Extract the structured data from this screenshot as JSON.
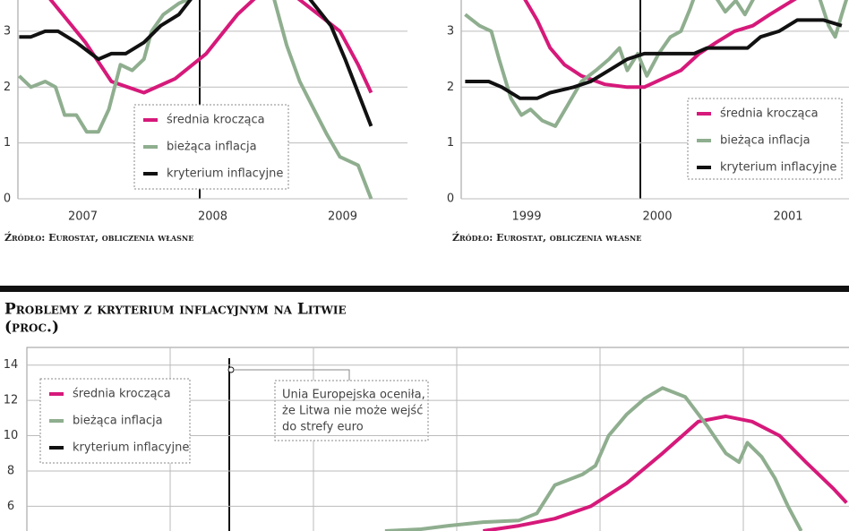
{
  "chart_data": [
    {
      "type": "line",
      "source": "Źródło: Eurostat, obliczenia własne",
      "xlim": [
        2007,
        2010
      ],
      "xticks": [
        {
          "value": 2007.5,
          "label": "2007"
        },
        {
          "value": 2008.5,
          "label": "2008"
        },
        {
          "value": 2009.5,
          "label": "2009"
        }
      ],
      "ylim": [
        0,
        3.56
      ],
      "yticks": [
        0,
        1,
        2,
        3
      ],
      "grid": true,
      "series": [
        {
          "name": "średnia krocząca",
          "color": "#d6197a",
          "x": [
            2007.24,
            2007.38,
            2007.52,
            2007.72,
            2007.97,
            2008.21,
            2008.45,
            2008.69,
            2008.83,
            2009.0,
            2009.15,
            2009.48,
            2009.62,
            2009.72
          ],
          "values": [
            3.6,
            3.2,
            2.8,
            2.1,
            1.9,
            2.15,
            2.6,
            3.3,
            3.6,
            null,
            3.6,
            3.0,
            2.4,
            1.9
          ]
        },
        {
          "name": "bieżąca inflacja",
          "color": "#8fae8f",
          "x": [
            2007.01,
            2007.1,
            2007.21,
            2007.29,
            2007.36,
            2007.45,
            2007.53,
            2007.62,
            2007.7,
            2007.79,
            2007.88,
            2007.97,
            2008.03,
            2008.12,
            2008.24,
            2008.34,
            2008.6,
            2008.97,
            2009.07,
            2009.17,
            2009.28,
            2009.38,
            2009.48,
            2009.62,
            2009.72
          ],
          "values": [
            2.2,
            2.0,
            2.1,
            2.0,
            1.5,
            1.5,
            1.2,
            1.2,
            1.6,
            2.4,
            2.3,
            2.5,
            3.0,
            3.3,
            3.5,
            3.6,
            null,
            3.6,
            2.75,
            2.1,
            1.6,
            1.15,
            0.75,
            0.6,
            0.0
          ]
        },
        {
          "name": "kryterium inflacyjne",
          "color": "#111111",
          "x": [
            2007.01,
            2007.1,
            2007.21,
            2007.31,
            2007.45,
            2007.62,
            2007.72,
            2007.83,
            2007.97,
            2008.1,
            2008.24,
            2008.34,
            2008.6,
            2009.24,
            2009.41,
            2009.52,
            2009.62,
            2009.72
          ],
          "values": [
            2.9,
            2.9,
            3.0,
            3.0,
            2.8,
            2.5,
            2.6,
            2.6,
            2.8,
            3.1,
            3.3,
            3.6,
            null,
            3.6,
            3.1,
            2.5,
            1.9,
            1.3
          ]
        }
      ]
    },
    {
      "type": "line",
      "source": "Źródło: Eurostat, obliczenia własne",
      "xlim": [
        1999,
        2002
      ],
      "xticks": [
        {
          "value": 1999.5,
          "label": "1999"
        },
        {
          "value": 2000.5,
          "label": "2000"
        },
        {
          "value": 2001.5,
          "label": "2001"
        }
      ],
      "ylim": [
        0,
        3.56
      ],
      "yticks": [
        0,
        1,
        2,
        3
      ],
      "grid": true,
      "series": [
        {
          "name": "średnia krocząca",
          "color": "#d6197a",
          "x": [
            1999.48,
            1999.58,
            1999.68,
            1999.79,
            1999.92,
            2000.1,
            2000.27,
            2000.4,
            2000.54,
            2000.68,
            2000.82,
            2000.95,
            2001.09,
            2001.23,
            2001.36,
            2001.5,
            2001.57
          ],
          "values": [
            3.6,
            3.2,
            2.7,
            2.4,
            2.2,
            2.05,
            2.0,
            2.0,
            2.15,
            2.3,
            2.6,
            2.8,
            3.0,
            3.1,
            3.3,
            3.5,
            3.6
          ]
        },
        {
          "name": "bieżąca inflacja",
          "color": "#8fae8f",
          "x": [
            1999.03,
            1999.14,
            1999.23,
            1999.29,
            1999.38,
            1999.46,
            1999.53,
            1999.62,
            1999.72,
            1999.82,
            1999.92,
            2000.03,
            2000.13,
            2000.21,
            2000.27,
            2000.35,
            2000.42,
            2000.51,
            2000.6,
            2000.68,
            2000.75,
            2000.78,
            2000.85,
            2000.95,
            2001.02,
            2001.1,
            2001.17,
            2001.24,
            2001.5,
            2001.74,
            2001.81,
            2001.86,
            2001.91,
            2001.95
          ],
          "values": [
            3.3,
            3.1,
            3.0,
            2.5,
            1.8,
            1.5,
            1.6,
            1.4,
            1.3,
            1.7,
            2.1,
            2.3,
            2.5,
            2.7,
            2.3,
            2.6,
            2.2,
            2.6,
            2.9,
            3.0,
            3.4,
            3.6,
            null,
            3.6,
            3.35,
            3.55,
            3.3,
            3.6,
            null,
            3.6,
            3.1,
            2.9,
            3.3,
            3.6
          ]
        },
        {
          "name": "kryterium inflacyjne",
          "color": "#111111",
          "x": [
            1999.03,
            1999.21,
            1999.31,
            1999.45,
            1999.58,
            1999.68,
            1999.86,
            1999.99,
            2000.13,
            2000.27,
            2000.4,
            2000.61,
            2000.78,
            2000.88,
            2001.19,
            2001.29,
            2001.43,
            2001.57,
            2001.77,
            2001.91
          ],
          "values": [
            2.1,
            2.1,
            2.0,
            1.8,
            1.8,
            1.9,
            2.0,
            2.1,
            2.3,
            2.5,
            2.6,
            2.6,
            2.6,
            2.7,
            2.7,
            2.9,
            3.0,
            3.2,
            3.2,
            3.1
          ]
        }
      ]
    },
    {
      "type": "line",
      "title": "Problemy z kryterium inflacyjnym na Litwie",
      "subtitle": "(proc.)",
      "annotation": [
        "Unia Europejska oceniła,",
        "że Litwa nie może wejść",
        "do strefy euro"
      ],
      "xlim": [
        0.25,
        69
      ],
      "ylim": [
        4.6,
        15
      ],
      "yticks": [
        6,
        8,
        10,
        12,
        14
      ],
      "grid": true,
      "series": [
        {
          "name": "średnia krocząca",
          "color": "#d6197a",
          "x": [
            38.4,
            41.4,
            44.4,
            47.4,
            50.4,
            53.4,
            56.4,
            58.7,
            60.9,
            63.2,
            65.4,
            67.7,
            68.8
          ],
          "values": [
            4.6,
            4.9,
            5.3,
            6.0,
            7.3,
            9.0,
            10.8,
            11.1,
            10.8,
            10.0,
            8.5,
            7.0,
            6.2
          ]
        },
        {
          "name": "bieżąca inflacja",
          "color": "#8fae8f",
          "x": [
            30.2,
            33.2,
            35.5,
            38.4,
            41.4,
            42.9,
            44.4,
            46.7,
            47.8,
            48.9,
            50.4,
            51.9,
            53.4,
            55.3,
            57.2,
            58.7,
            59.8,
            60.5,
            61.7,
            62.8,
            63.9,
            65.0
          ],
          "values": [
            4.6,
            4.7,
            4.9,
            5.1,
            5.2,
            5.6,
            7.2,
            7.8,
            8.3,
            10.0,
            11.2,
            12.1,
            12.7,
            12.2,
            10.5,
            9.0,
            8.5,
            9.6,
            8.8,
            7.6,
            6.0,
            4.6
          ]
        },
        {
          "name": "kryterium inflacyjne",
          "color": "#111111",
          "x": [],
          "values": []
        }
      ]
    }
  ]
}
